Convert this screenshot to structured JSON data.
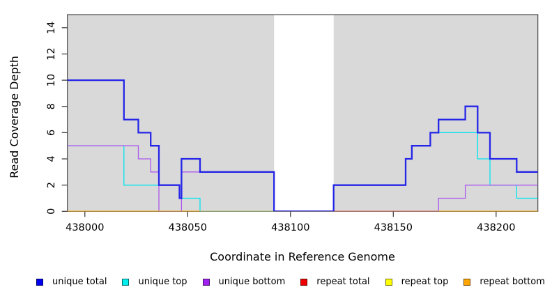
{
  "chart_data": {
    "type": "line",
    "subtype": "step-coverage",
    "title": "",
    "xlabel": "Coordinate in Reference Genome",
    "ylabel": "Read Coverage Depth",
    "xlim": [
      437991.5,
      438220.3
    ],
    "ylim": [
      0,
      15
    ],
    "grid": "off",
    "plot_bg": "#d9d9d9",
    "border_color": "#4b4b4b",
    "x_ticks": [
      438000,
      438050,
      438100,
      438150,
      438200
    ],
    "x_tick_labels": [
      "438000",
      "438050",
      "438100",
      "438150",
      "438200"
    ],
    "y_ticks": [
      0,
      2,
      4,
      6,
      8,
      10,
      12,
      14
    ],
    "y_tick_labels": [
      "0",
      "2",
      "4",
      "6",
      "8",
      "10",
      "12",
      "14"
    ],
    "uncovered_region": {
      "from": 438092,
      "to": 438121,
      "color": "#ffffff"
    },
    "layers": [
      {
        "kind": "series",
        "name": "repeat total",
        "color": "#dd2222",
        "width": 1.2,
        "points": [
          [
            437991.5,
            0
          ]
        ],
        "xend": 438220.3
      },
      {
        "kind": "series",
        "name": "repeat top",
        "color": "#ffff00",
        "width": 1.2,
        "points": [
          [
            437991.5,
            0
          ]
        ],
        "xend": 438220.3
      },
      {
        "kind": "series",
        "name": "unique top",
        "color": "#00e5ee",
        "width": 1.3,
        "points": [
          [
            437991.5,
            5
          ],
          [
            438019,
            2
          ],
          [
            438046,
            1
          ],
          [
            438056,
            0
          ],
          [
            438121,
            2
          ],
          [
            438156,
            4
          ],
          [
            438159,
            5
          ],
          [
            438168,
            6
          ],
          [
            438191,
            4
          ],
          [
            438197,
            2
          ],
          [
            438210,
            1
          ]
        ],
        "xend": 438220.3
      },
      {
        "kind": "series",
        "name": "unique bottom",
        "color": "#ab58ee",
        "width": 1.3,
        "points": [
          [
            437991.5,
            5
          ],
          [
            438026,
            4
          ],
          [
            438032,
            3
          ],
          [
            438036,
            0
          ],
          [
            438047,
            3
          ],
          [
            438092,
            0
          ],
          [
            438172,
            1
          ],
          [
            438185,
            2
          ]
        ],
        "xend": 438220.3
      },
      {
        "kind": "series",
        "name": "repeat bottom",
        "color": "#ffa500",
        "width": 1.6,
        "points": [
          [
            437991.5,
            0
          ]
        ],
        "xend": 438220.3
      },
      {
        "kind": "segment",
        "name": "baseline-blend-green",
        "color": "#95cf95",
        "width": 1.4,
        "y": 0,
        "from": 438056,
        "to": 438092
      },
      {
        "kind": "segment",
        "name": "baseline-blend-crimson",
        "color": "#d2547a",
        "width": 1.4,
        "y": 0,
        "from": 438121,
        "to": 438172
      },
      {
        "kind": "series",
        "name": "unique total",
        "color": "#2525e8",
        "width": 2.3,
        "points": [
          [
            437991.5,
            10
          ],
          [
            438019,
            7
          ],
          [
            438026,
            6
          ],
          [
            438032,
            5
          ],
          [
            438036,
            2
          ],
          [
            438046,
            1
          ],
          [
            438047,
            4
          ],
          [
            438056,
            3
          ],
          [
            438092,
            0
          ],
          [
            438121,
            2
          ],
          [
            438156,
            4
          ],
          [
            438159,
            5
          ],
          [
            438168,
            6
          ],
          [
            438172,
            7
          ],
          [
            438185,
            8
          ],
          [
            438191,
            6
          ],
          [
            438197,
            4
          ],
          [
            438210,
            3
          ]
        ],
        "xend": 438220.3
      }
    ],
    "legend": {
      "position": "bottom",
      "items": [
        {
          "label": "unique total",
          "color": "#0000ee"
        },
        {
          "label": "unique top",
          "color": "#00eeee"
        },
        {
          "label": "unique bottom",
          "color": "#a020f0"
        },
        {
          "label": "repeat total",
          "color": "#ee0000"
        },
        {
          "label": "repeat top",
          "color": "#ffff00"
        },
        {
          "label": "repeat bottom",
          "color": "#ffa500"
        }
      ]
    }
  }
}
